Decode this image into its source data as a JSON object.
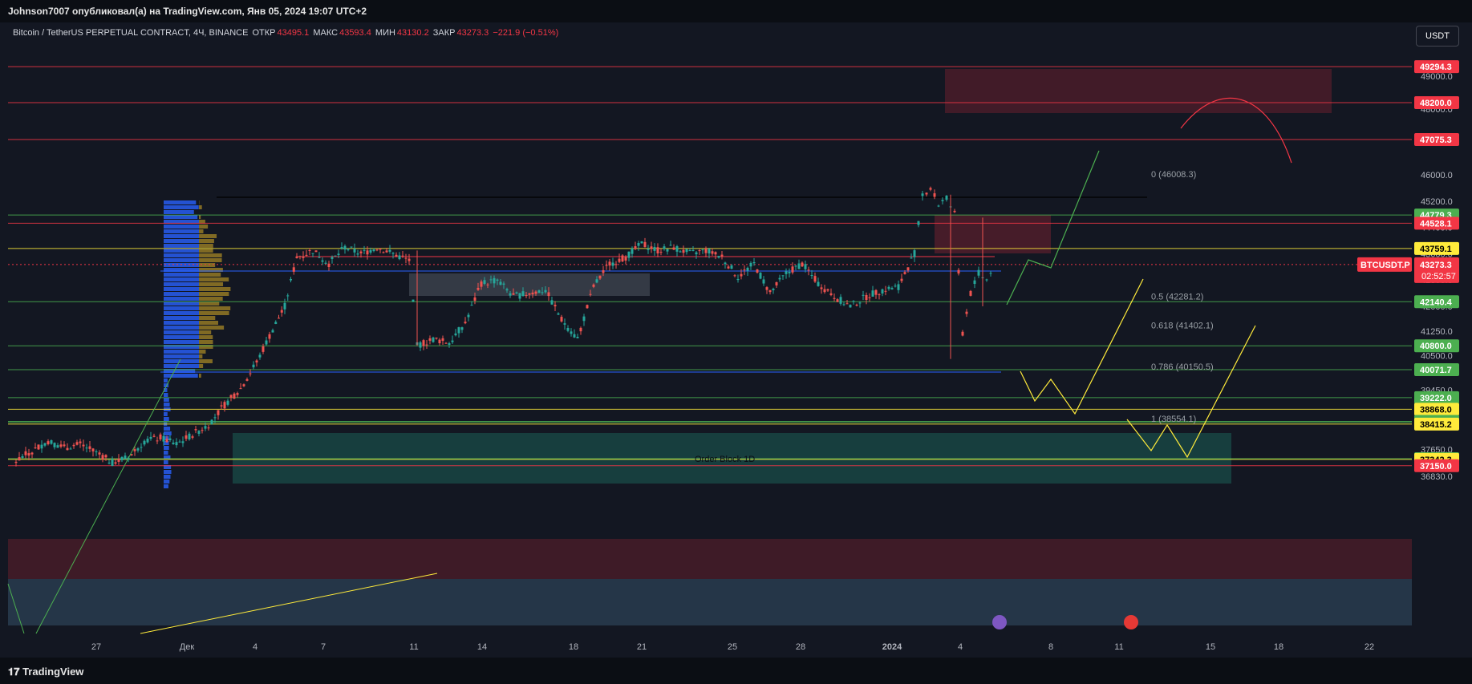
{
  "header": {
    "published_by": "Johnson7007 опубликовал(а) на TradingView.com, Янв 05, 2024 19:07 UTC+2"
  },
  "legend": {
    "symbol": "Bitcoin / TetherUS PERPETUAL CONTRACT, 4Ч, BINANCE",
    "open_label": "ОТКР",
    "open": "43495.1",
    "high_label": "МАКС",
    "high": "43593.4",
    "low_label": "МИН",
    "low": "43130.2",
    "close_label": "ЗАКР",
    "close": "43273.3",
    "change": "−221.9 (−0.51%)"
  },
  "currency_button": "USDT",
  "footer": {
    "brand": "TradingView"
  },
  "chart_data": {
    "type": "candlestick",
    "symbol_tag": "BTCUSDT.P",
    "last_price": "43273.3",
    "countdown": "02:52:57",
    "y_axis": {
      "ticks": [
        "49000.0",
        "48000.0",
        "46000.0",
        "45200.0",
        "44400.0",
        "43600.0",
        "42800.0",
        "42000.0",
        "41250.0",
        "40500.0",
        "39450.0",
        "37650.0",
        "36830.0"
      ]
    },
    "x_axis": {
      "ticks": [
        {
          "label": "27",
          "x": 120
        },
        {
          "label": "Дек",
          "x": 233
        },
        {
          "label": "4",
          "x": 318
        },
        {
          "label": "7",
          "x": 403
        },
        {
          "label": "11",
          "x": 516
        },
        {
          "label": "14",
          "x": 601
        },
        {
          "label": "18",
          "x": 715
        },
        {
          "label": "21",
          "x": 800
        },
        {
          "label": "25",
          "x": 913
        },
        {
          "label": "28",
          "x": 998
        },
        {
          "label": "2024",
          "x": 1112
        },
        {
          "label": "4",
          "x": 1197
        },
        {
          "label": "8",
          "x": 1310
        },
        {
          "label": "11",
          "x": 1395
        },
        {
          "label": "15",
          "x": 1509
        },
        {
          "label": "18",
          "x": 1594
        },
        {
          "label": "22",
          "x": 1707
        }
      ]
    },
    "price_levels": [
      {
        "value": "49294.3",
        "color": "#f23645",
        "text_color": "#ffffff"
      },
      {
        "value": "48200.0",
        "color": "#f23645",
        "text_color": "#ffffff"
      },
      {
        "value": "47075.3",
        "color": "#f23645",
        "text_color": "#ffffff"
      },
      {
        "value": "44779.3",
        "color": "#4caf50",
        "text_color": "#ffffff"
      },
      {
        "value": "44528.1",
        "color": "#f23645",
        "text_color": "#ffffff"
      },
      {
        "value": "43759.1",
        "color": "#ffeb3b",
        "text_color": "#000000"
      },
      {
        "value": "42140.4",
        "color": "#4caf50",
        "text_color": "#ffffff"
      },
      {
        "value": "40800.0",
        "color": "#4caf50",
        "text_color": "#ffffff"
      },
      {
        "value": "40071.7",
        "color": "#4caf50",
        "text_color": "#ffffff"
      },
      {
        "value": "39222.0",
        "color": "#4caf50",
        "text_color": "#ffffff"
      },
      {
        "value": "38868.0",
        "color": "#ffeb3b",
        "text_color": "#000000"
      },
      {
        "value": "38499.9",
        "color": "#4caf50",
        "text_color": "#ffffff"
      },
      {
        "value": "38465.7",
        "color": "#4caf50",
        "text_color": "#ffffff"
      },
      {
        "value": "38415.2",
        "color": "#ffeb3b",
        "text_color": "#000000"
      },
      {
        "value": "37364.3",
        "color": "#4caf50",
        "text_color": "#ffffff"
      },
      {
        "value": "37342.3",
        "color": "#ffeb3b",
        "text_color": "#000000"
      },
      {
        "value": "37150.0",
        "color": "#f23645",
        "text_color": "#ffffff"
      }
    ],
    "fib_labels": [
      {
        "text": "0 (46008.3)",
        "price": 46000
      },
      {
        "text": "0.5 (42281.2)",
        "price": 42281
      },
      {
        "text": "0.618 (41402.1)",
        "price": 41402
      },
      {
        "text": "0.786 (40150.5)",
        "price": 40150
      },
      {
        "text": "1 (38554.1)",
        "price": 38554
      }
    ],
    "annotation": "Order Block 1D",
    "colors": {
      "bull": "#26a69a",
      "bear": "#ef5350",
      "bg": "#131722"
    }
  }
}
